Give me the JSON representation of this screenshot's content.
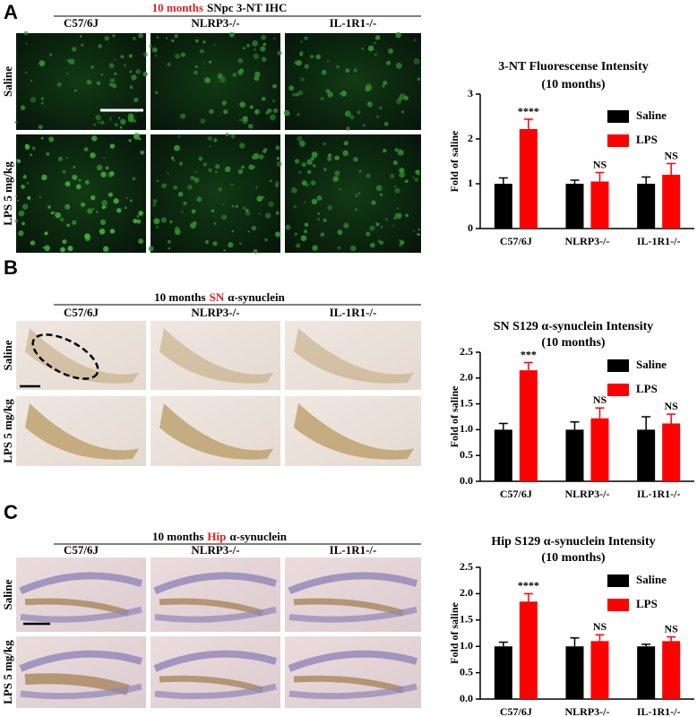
{
  "panels": [
    {
      "label": "A",
      "header": [
        {
          "text": "10 months",
          "color": "#e02020"
        },
        {
          "text": "SNpc 3-NT IHC",
          "color": "#000000"
        }
      ],
      "columns": [
        "C57/6J",
        "NLRP3-/-",
        "IL-1R1-/-"
      ],
      "rows": [
        {
          "text": "Saline",
          "color": "#000000"
        },
        {
          "text": "LPS 5 mg/kg",
          "color": "#e02020"
        }
      ]
    },
    {
      "label": "B",
      "header": [
        {
          "text": "10 months",
          "color": "#000000"
        },
        {
          "text": "SN",
          "color": "#e02020"
        },
        {
          "text": "α-synuclein",
          "color": "#000000"
        }
      ],
      "columns": [
        "C57/6J",
        "NLRP3-/-",
        "IL-1R1-/-"
      ],
      "rows": [
        {
          "text": "Saline",
          "color": "#000000"
        },
        {
          "text": "LPS 5 mg/kg",
          "color": "#e02020"
        }
      ]
    },
    {
      "label": "C",
      "header": [
        {
          "text": "10 months",
          "color": "#000000"
        },
        {
          "text": "Hip",
          "color": "#e02020"
        },
        {
          "text": "α-synuclein",
          "color": "#000000"
        }
      ],
      "columns": [
        "C57/6J",
        "NLRP3-/-",
        "IL-1R1-/-"
      ],
      "rows": [
        {
          "text": "Saline",
          "color": "#000000"
        },
        {
          "text": "LPS 5 mg/kg",
          "color": "#e02020"
        }
      ]
    }
  ],
  "chart_data": [
    {
      "type": "bar",
      "title": "3-NT Fluorescense Intensity",
      "subtitle": "(10 months)",
      "ylabel": "Fold of saline",
      "categories": [
        "C57/6J",
        "NLRP3-/-",
        "IL-1R1-/-"
      ],
      "series": [
        {
          "name": "Saline",
          "color": "#000000",
          "values": [
            1.0,
            1.0,
            1.0
          ],
          "errors": [
            0.13,
            0.08,
            0.15
          ]
        },
        {
          "name": "LPS",
          "color": "#ff0000",
          "values": [
            2.22,
            1.05,
            1.2
          ],
          "errors": [
            0.22,
            0.2,
            0.25
          ],
          "annotations": [
            "****",
            "NS",
            "NS"
          ]
        }
      ],
      "ylim": [
        0,
        3
      ],
      "yticks": [
        0,
        1,
        2,
        3
      ],
      "legend": "upper right"
    },
    {
      "type": "bar",
      "title": "SN S129 α-synuclein Intensity",
      "subtitle": "(10 months)",
      "ylabel": "Fold of saline",
      "categories": [
        "C57/6J",
        "NLRP3-/-",
        "IL-1R1-/-"
      ],
      "series": [
        {
          "name": "Saline",
          "color": "#000000",
          "values": [
            1.0,
            1.0,
            1.0
          ],
          "errors": [
            0.12,
            0.15,
            0.25
          ]
        },
        {
          "name": "LPS",
          "color": "#ff0000",
          "values": [
            2.15,
            1.22,
            1.12
          ],
          "errors": [
            0.15,
            0.2,
            0.18
          ],
          "annotations": [
            "***",
            "NS",
            "NS"
          ]
        }
      ],
      "ylim": [
        0,
        2.5
      ],
      "yticks": [
        {
          "value": 0,
          "label": "0.0"
        },
        {
          "value": 0.5,
          "label": "0.5"
        },
        {
          "value": 1,
          "label": "1.0"
        },
        {
          "value": 1.5,
          "label": "1.5"
        },
        {
          "value": 2,
          "label": "2.0"
        },
        {
          "value": 2.5,
          "label": "2.5"
        }
      ],
      "legend": "upper right"
    },
    {
      "type": "bar",
      "title": "Hip S129 α-synuclein Intensity",
      "subtitle": "(10 months)",
      "ylabel": "Fold of saline",
      "categories": [
        "C57/6J",
        "NLRP3-/-",
        "IL-1R1-/-"
      ],
      "series": [
        {
          "name": "Saline",
          "color": "#000000",
          "values": [
            1.0,
            1.0,
            1.0
          ],
          "errors": [
            0.08,
            0.16,
            0.04
          ]
        },
        {
          "name": "LPS",
          "color": "#ff0000",
          "values": [
            1.85,
            1.1,
            1.1
          ],
          "errors": [
            0.15,
            0.12,
            0.08
          ],
          "annotations": [
            "****",
            "NS",
            "NS"
          ]
        }
      ],
      "ylim": [
        0,
        2.5
      ],
      "yticks": [
        {
          "value": 0,
          "label": "0.0"
        },
        {
          "value": 0.5,
          "label": "0.5"
        },
        {
          "value": 1,
          "label": "1.0"
        },
        {
          "value": 1.5,
          "label": "1.5"
        },
        {
          "value": 2,
          "label": "2.0"
        },
        {
          "value": 2.5,
          "label": "2.5"
        }
      ],
      "legend": "upper right"
    }
  ]
}
